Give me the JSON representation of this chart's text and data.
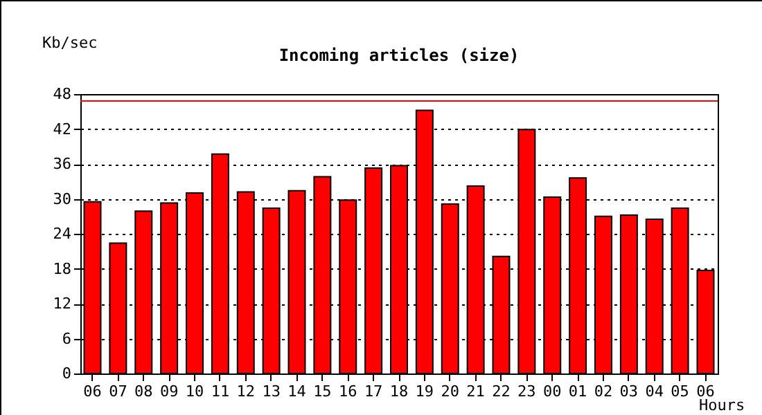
{
  "chart_data": {
    "type": "bar",
    "title": "Incoming articles (size)",
    "xlabel": "Hours",
    "ylabel": "Kb/sec",
    "categories": [
      "06",
      "07",
      "08",
      "09",
      "10",
      "11",
      "12",
      "13",
      "14",
      "15",
      "16",
      "17",
      "18",
      "19",
      "20",
      "21",
      "22",
      "23",
      "00",
      "01",
      "02",
      "03",
      "04",
      "05",
      "06"
    ],
    "values": [
      29.5,
      22.4,
      27.9,
      29.3,
      31.0,
      37.7,
      31.2,
      28.4,
      31.4,
      33.8,
      29.8,
      35.3,
      35.7,
      45.2,
      29.1,
      32.2,
      20.1,
      41.9,
      30.3,
      33.6,
      27.0,
      27.2,
      26.5,
      28.4,
      17.7
    ],
    "color": "#ff0000",
    "ylim": [
      0,
      48
    ],
    "yticks": [
      0,
      6,
      12,
      18,
      24,
      30,
      36,
      42,
      48
    ],
    "grid": "y",
    "ref_lines": [
      {
        "axis": "y",
        "value": 46.8,
        "color": "#ff0000"
      }
    ]
  }
}
